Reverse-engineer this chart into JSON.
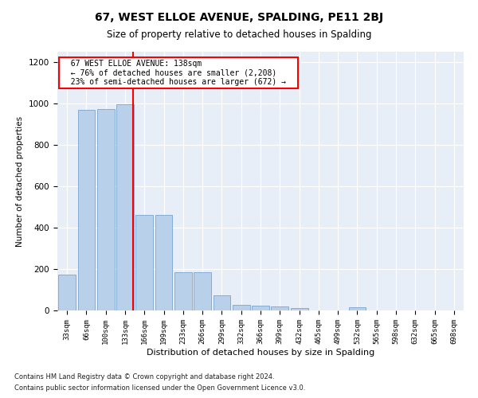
{
  "title": "67, WEST ELLOE AVENUE, SPALDING, PE11 2BJ",
  "subtitle": "Size of property relative to detached houses in Spalding",
  "xlabel": "Distribution of detached houses by size in Spalding",
  "ylabel": "Number of detached properties",
  "footnote1": "Contains HM Land Registry data © Crown copyright and database right 2024.",
  "footnote2": "Contains public sector information licensed under the Open Government Licence v3.0.",
  "categories": [
    "33sqm",
    "66sqm",
    "100sqm",
    "133sqm",
    "166sqm",
    "199sqm",
    "233sqm",
    "266sqm",
    "299sqm",
    "332sqm",
    "366sqm",
    "399sqm",
    "432sqm",
    "465sqm",
    "499sqm",
    "532sqm",
    "565sqm",
    "598sqm",
    "632sqm",
    "665sqm",
    "698sqm"
  ],
  "values": [
    172,
    968,
    975,
    998,
    462,
    462,
    185,
    185,
    72,
    28,
    22,
    18,
    12,
    0,
    0,
    15,
    0,
    0,
    0,
    0,
    0
  ],
  "bar_color": "#b8d0ea",
  "bar_edge_color": "#6699cc",
  "bg_color": "#e8eef8",
  "vline_color": "red",
  "vline_pos": 3.425,
  "annotation_text": "  67 WEST ELLOE AVENUE: 138sqm  \n  ← 76% of detached houses are smaller (2,208)  \n  23% of semi-detached houses are larger (672) →  ",
  "annotation_box_color": "white",
  "annotation_box_edge": "red",
  "ylim": [
    0,
    1250
  ],
  "yticks": [
    0,
    200,
    400,
    600,
    800,
    1000,
    1200
  ],
  "title_fontsize": 10,
  "subtitle_fontsize": 8.5
}
